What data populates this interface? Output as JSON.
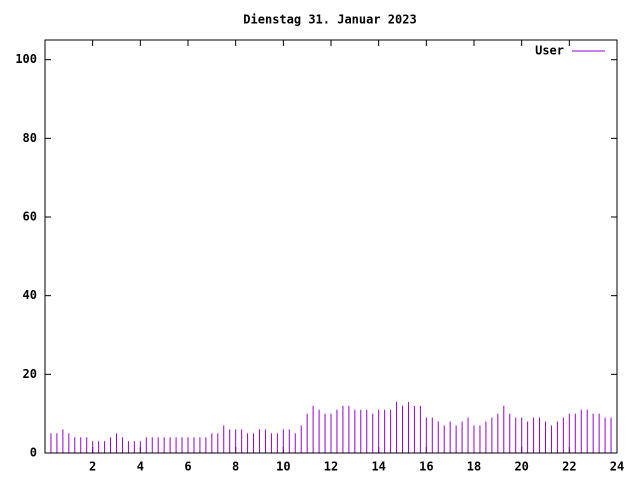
{
  "chart_data": {
    "type": "impulse",
    "title": "Dienstag 31. Januar 2023",
    "x": [
      0,
      0.25,
      0.5,
      0.75,
      1,
      1.25,
      1.5,
      1.75,
      2,
      2.25,
      2.5,
      2.75,
      3,
      3.25,
      3.5,
      3.75,
      4,
      4.25,
      4.5,
      4.75,
      5,
      5.25,
      5.5,
      5.75,
      6,
      6.25,
      6.5,
      6.75,
      7,
      7.25,
      7.5,
      7.75,
      8,
      8.25,
      8.5,
      8.75,
      9,
      9.25,
      9.5,
      9.75,
      10,
      10.25,
      10.5,
      10.75,
      11,
      11.25,
      11.5,
      11.75,
      12,
      12.25,
      12.5,
      12.75,
      13,
      13.25,
      13.5,
      13.75,
      14,
      14.25,
      14.5,
      14.75,
      15,
      15.25,
      15.5,
      15.75,
      16,
      16.25,
      16.5,
      16.75,
      17,
      17.25,
      17.5,
      17.75,
      18,
      18.25,
      18.5,
      18.75,
      19,
      19.25,
      19.5,
      19.75,
      20,
      20.25,
      20.5,
      20.75,
      21,
      21.25,
      21.5,
      21.75,
      22,
      22.25,
      22.5,
      22.75,
      23,
      23.25,
      23.5,
      23.75
    ],
    "series": [
      {
        "name": "User",
        "color": "#9400d3",
        "values": [
          5,
          5,
          5,
          6,
          5,
          4,
          4,
          4,
          3,
          3,
          3,
          4,
          5,
          4,
          3,
          3,
          3,
          4,
          4,
          4,
          4,
          4,
          4,
          4,
          4,
          4,
          4,
          4,
          5,
          5,
          7,
          6,
          6,
          6,
          5,
          5,
          6,
          6,
          5,
          5,
          6,
          6,
          5,
          7,
          10,
          12,
          11,
          10,
          10,
          11,
          12,
          12,
          11,
          11,
          11,
          10,
          11,
          11,
          11,
          13,
          12,
          13,
          12,
          12,
          9,
          9,
          8,
          7,
          8,
          7,
          8,
          9,
          7,
          7,
          8,
          9,
          10,
          12,
          10,
          9,
          9,
          8,
          9,
          9,
          8,
          7,
          8,
          9,
          10,
          10,
          11,
          11,
          10,
          10,
          9,
          9
        ]
      }
    ],
    "xlim": [
      0,
      24
    ],
    "xticks": [
      2,
      4,
      6,
      8,
      10,
      12,
      14,
      16,
      18,
      20,
      22,
      24
    ],
    "ylim": [
      0,
      105
    ],
    "yticks": [
      0,
      20,
      40,
      60,
      80,
      100
    ],
    "legend": "upper right"
  }
}
